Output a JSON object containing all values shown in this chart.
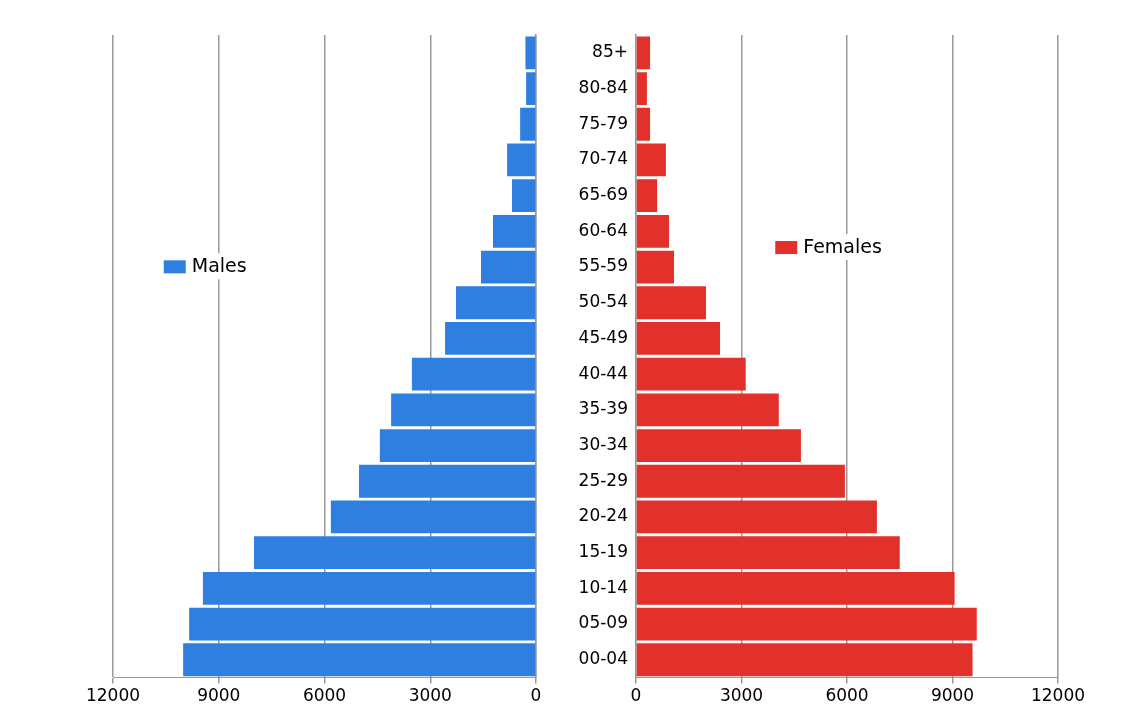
{
  "chart_data": [
    {
      "type": "bar",
      "orientation": "horizontal",
      "categories": [
        null,
        null,
        null,
        null,
        null,
        null,
        null,
        null,
        null,
        null,
        null,
        null,
        null,
        null,
        null,
        null,
        null,
        null
      ],
      "series": [
        {
          "name": "Males",
          "color": "#2f7fe0",
          "values": [
            300,
            280,
            450,
            820,
            680,
            1220,
            1560,
            2270,
            2580,
            3520,
            4110,
            4430,
            5020,
            5820,
            8000,
            9450,
            9840,
            10010
          ]
        }
      ],
      "xlim": [
        12000,
        0
      ],
      "xticks": [
        12000,
        9000,
        6000,
        3000,
        0
      ],
      "grid": "x",
      "legend": "left",
      "tick_labels": "x"
    },
    {
      "type": "bar",
      "orientation": "horizontal",
      "categories": [
        "85+",
        "80-84",
        "75-79",
        "70-74",
        "65-69",
        "60-64",
        "55-59",
        "50-54",
        "45-49",
        "40-44",
        "35-39",
        "30-34",
        "25-29",
        "20-24",
        "15-19",
        "10-14",
        "05-09",
        "00-04"
      ],
      "series": [
        {
          "name": "Females",
          "color": "#e2302a",
          "values": [
            400,
            310,
            400,
            850,
            600,
            940,
            1080,
            1990,
            2390,
            3120,
            4060,
            4690,
            5940,
            6850,
            7500,
            9060,
            9690,
            9570
          ]
        }
      ],
      "xlim": [
        0,
        12000
      ],
      "xticks": [
        0,
        3000,
        6000,
        9000,
        12000
      ],
      "grid": "x",
      "legend": "top"
    }
  ]
}
